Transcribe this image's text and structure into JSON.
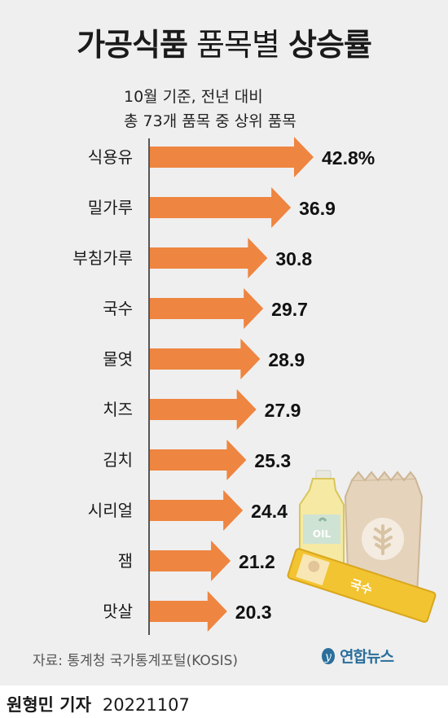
{
  "title": {
    "bold_part": "가공식품",
    "normal_part": "품목별",
    "bold_part2": "상승률"
  },
  "subtitle": {
    "line1": "10월 기준, 전년 대비",
    "line2": "총 73개 품목 중 상위 품목"
  },
  "source": "자료: 통계청 국가통계포털(KOSIS)",
  "logo_text": "연합뉴스",
  "byline": {
    "reporter": "원형민 기자",
    "date": "20221107"
  },
  "illustration": {
    "bottle_label": "OIL",
    "noodle_label": "국수"
  },
  "colors": {
    "bar": "#ee8540",
    "panel": "#efefef",
    "axis": "#555555",
    "logo": "#2a6f9c"
  },
  "chart_data": {
    "type": "bar",
    "orientation": "horizontal",
    "categories": [
      "식용유",
      "밀가루",
      "부침가루",
      "국수",
      "물엿",
      "치즈",
      "김치",
      "시리얼",
      "잼",
      "맛살"
    ],
    "values": [
      42.8,
      36.9,
      30.8,
      29.7,
      28.9,
      27.9,
      25.3,
      24.4,
      21.2,
      20.3
    ],
    "value_labels": [
      "42.8%",
      "36.9",
      "30.8",
      "29.7",
      "28.9",
      "27.9",
      "25.3",
      "24.4",
      "21.2",
      "20.3"
    ],
    "unit": "%",
    "bar_shape": "arrow",
    "xlim": [
      0,
      42.8
    ]
  }
}
